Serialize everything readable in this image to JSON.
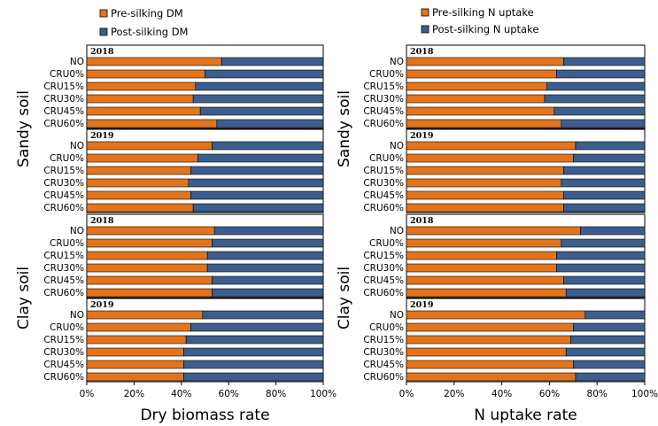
{
  "colors": {
    "pre": "#E4741B",
    "post": "#3C5E8F",
    "border": "#000000"
  },
  "chart_data": [
    {
      "type": "bar",
      "stacked": true,
      "orientation": "horizontal",
      "xlabel": "Dry biomass rate",
      "xlim": [
        0,
        100
      ],
      "x_ticks": [
        "0%",
        "20%",
        "40%",
        "60%",
        "80%",
        "100%"
      ],
      "legend": [
        "Pre-silking DM",
        "Post-silking DM"
      ],
      "legend_position": "top-left",
      "categories": [
        "NO",
        "CRU0%",
        "CRU15%",
        "CRU30%",
        "CRU45%",
        "CRU60%"
      ],
      "soils": [
        "Sandy soil",
        "Clay soil"
      ],
      "panels": [
        {
          "soil": "Sandy soil",
          "year": "2018",
          "pre_values": [
            57,
            50,
            46,
            45,
            48,
            55
          ]
        },
        {
          "soil": "Sandy soil",
          "year": "2019",
          "pre_values": [
            53,
            47,
            44,
            43,
            44,
            45
          ]
        },
        {
          "soil": "Clay soil",
          "year": "2018",
          "pre_values": [
            54,
            53,
            51,
            51,
            53,
            53
          ]
        },
        {
          "soil": "Clay soil",
          "year": "2019",
          "pre_values": [
            49,
            44,
            42,
            41,
            41,
            41
          ]
        }
      ]
    },
    {
      "type": "bar",
      "stacked": true,
      "orientation": "horizontal",
      "xlabel": "N uptake rate",
      "xlim": [
        0,
        100
      ],
      "x_ticks": [
        "0%",
        "20%",
        "40%",
        "60%",
        "80%",
        "100%"
      ],
      "legend": [
        "Pre-silking N uptake",
        "Post-silking N uptake"
      ],
      "legend_position": "top-center",
      "categories": [
        "NO",
        "CRU0%",
        "CRU15%",
        "CRU30%",
        "CRU45%",
        "CRU60%"
      ],
      "soils": [
        "Sandy soil",
        "Clay soil"
      ],
      "panels": [
        {
          "soil": "Sandy soil",
          "year": "2018",
          "pre_values": [
            66,
            63,
            59,
            58,
            62,
            65
          ]
        },
        {
          "soil": "Sandy soil",
          "year": "2019",
          "pre_values": [
            71,
            70,
            66,
            65,
            66,
            66
          ]
        },
        {
          "soil": "Clay soil",
          "year": "2018",
          "pre_values": [
            73,
            65,
            63,
            63,
            66,
            67
          ]
        },
        {
          "soil": "Clay soil",
          "year": "2019",
          "pre_values": [
            75,
            70,
            69,
            67,
            70,
            71
          ]
        }
      ]
    }
  ]
}
